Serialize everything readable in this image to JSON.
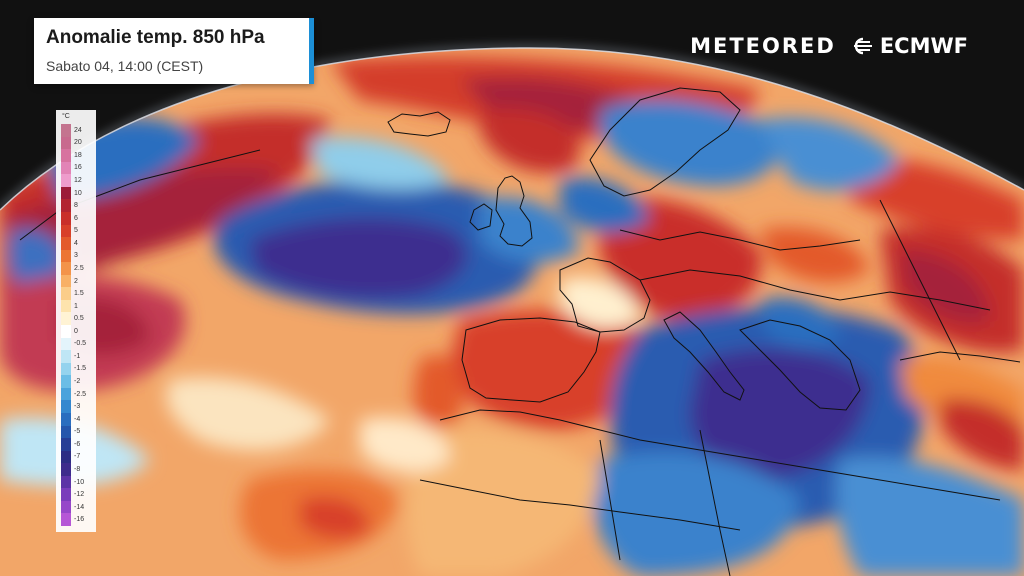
{
  "title": {
    "main": "Anomalie temp. 850 hPa",
    "subtitle": "Sabato 04, 14:00 (CEST)"
  },
  "brands": {
    "meteored": "METEORED",
    "ecmwf": "ECMWF"
  },
  "legend": {
    "unit": "°C",
    "steps": [
      {
        "label": "24",
        "color": "#c4748f"
      },
      {
        "label": "20",
        "color": "#c86a8e"
      },
      {
        "label": "18",
        "color": "#d7739f"
      },
      {
        "label": "16",
        "color": "#e284b6"
      },
      {
        "label": "12",
        "color": "#ee9ccc"
      },
      {
        "label": "10",
        "color": "#9c1b38"
      },
      {
        "label": "8",
        "color": "#b22531"
      },
      {
        "label": "6",
        "color": "#c92f2a"
      },
      {
        "label": "5",
        "color": "#d8402a"
      },
      {
        "label": "4",
        "color": "#e35a2c"
      },
      {
        "label": "3",
        "color": "#ec7534"
      },
      {
        "label": "2.5",
        "color": "#f3934a"
      },
      {
        "label": "2",
        "color": "#f8b066"
      },
      {
        "label": "1.5",
        "color": "#fbcd8a"
      },
      {
        "label": "1",
        "color": "#fde3ad"
      },
      {
        "label": "0.5",
        "color": "#fff3d4"
      },
      {
        "label": "0",
        "color": "#ffffff"
      },
      {
        "label": "-0.5",
        "color": "#e3f4fb"
      },
      {
        "label": "-1",
        "color": "#bfe6f5"
      },
      {
        "label": "-1.5",
        "color": "#95d3ee"
      },
      {
        "label": "-2",
        "color": "#6bbde6"
      },
      {
        "label": "-2.5",
        "color": "#4aa3dc"
      },
      {
        "label": "-3",
        "color": "#3588cf"
      },
      {
        "label": "-4",
        "color": "#2a6ebf"
      },
      {
        "label": "-5",
        "color": "#2557ac"
      },
      {
        "label": "-6",
        "color": "#263f96"
      },
      {
        "label": "-7",
        "color": "#2c2d84"
      },
      {
        "label": "-8",
        "color": "#3d2b8c"
      },
      {
        "label": "-10",
        "color": "#5c33a6"
      },
      {
        "label": "-12",
        "color": "#7a3dbb"
      },
      {
        "label": "-14",
        "color": "#9648c9"
      },
      {
        "label": "-16",
        "color": "#b657d6"
      }
    ]
  },
  "map": {
    "colors": {
      "background": "#111111",
      "white": "#ffffff",
      "pale_warm": "#fff0cf",
      "light_orange": "#f7b06a",
      "orange": "#f08a3e",
      "red": "#d8402a",
      "dark_red": "#a5223a",
      "light_blue": "#9fd6ef",
      "mid_blue": "#3b82cc",
      "dark_blue": "#24468f",
      "purple": "#4a2f96",
      "border": "#111111"
    }
  }
}
